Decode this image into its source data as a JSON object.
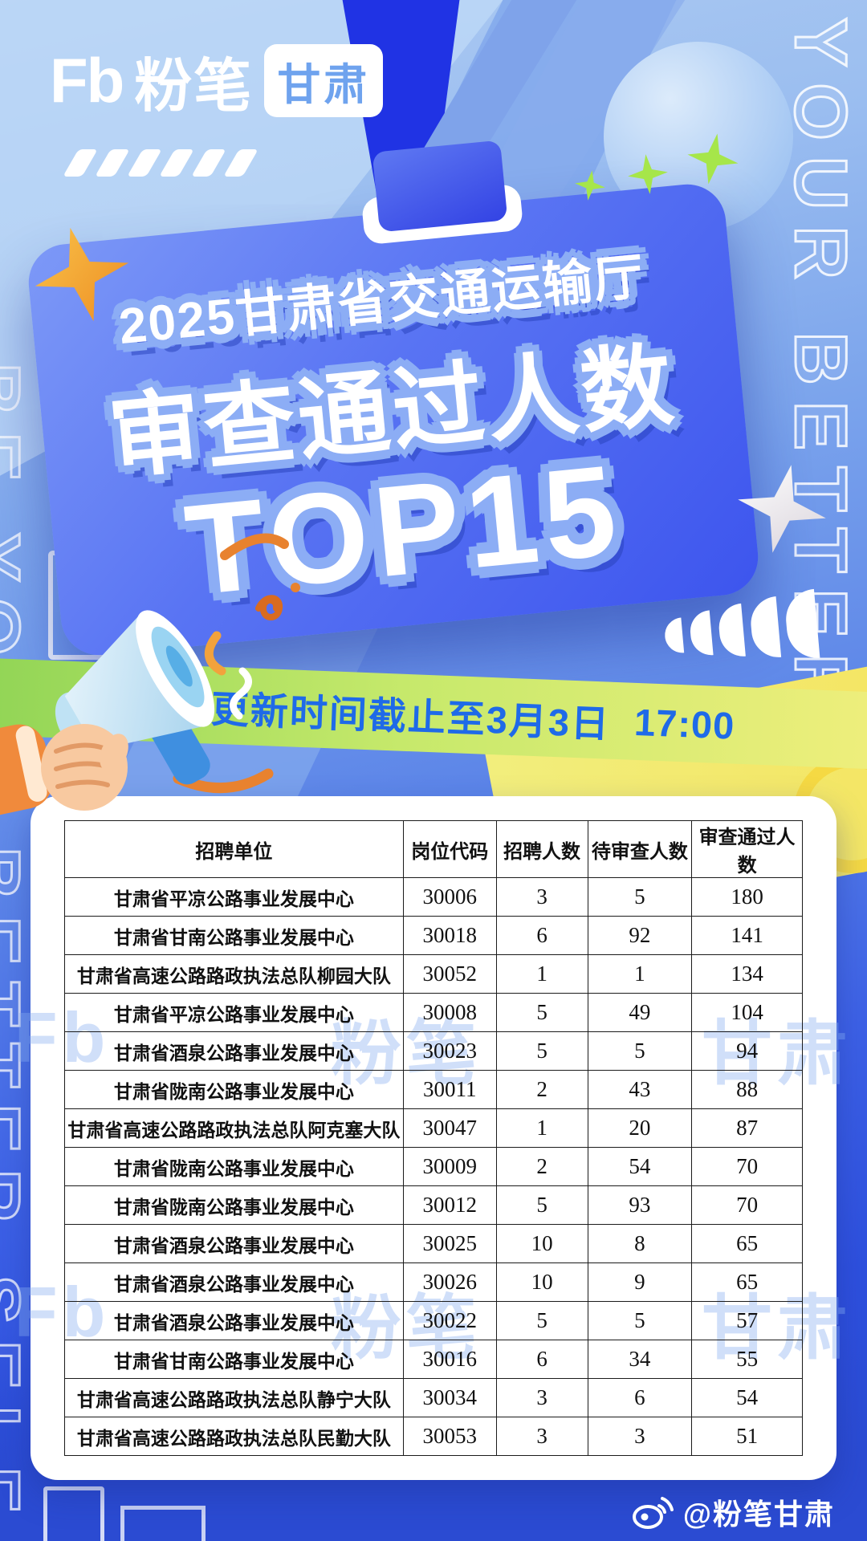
{
  "brand": {
    "logo_fb": "Fb",
    "logo_name": "粉笔",
    "region_badge": "甘肃",
    "slogan_vertical_right": "YOUR BETTER S",
    "slogan_vertical_left": "BE YOUR BETTER SELF",
    "watermark_parts": [
      "Fb",
      "粉笔",
      "甘肃"
    ]
  },
  "header": {
    "title_line1": "2025甘肃省交通运输厅",
    "title_line2": "审查通过人数",
    "title_line3": "TOP15"
  },
  "update_banner": {
    "text": "数据更新时间截止至3月3日",
    "time": "17:00"
  },
  "table": {
    "columns": [
      "招聘单位",
      "岗位代码",
      "招聘人数",
      "待审查人数",
      "审查通过人数"
    ],
    "rows": [
      [
        "甘肃省平凉公路事业发展中心",
        "30006",
        "3",
        "5",
        "180"
      ],
      [
        "甘肃省甘南公路事业发展中心",
        "30018",
        "6",
        "92",
        "141"
      ],
      [
        "甘肃省高速公路路政执法总队柳园大队",
        "30052",
        "1",
        "1",
        "134"
      ],
      [
        "甘肃省平凉公路事业发展中心",
        "30008",
        "5",
        "49",
        "104"
      ],
      [
        "甘肃省酒泉公路事业发展中心",
        "30023",
        "5",
        "5",
        "94"
      ],
      [
        "甘肃省陇南公路事业发展中心",
        "30011",
        "2",
        "43",
        "88"
      ],
      [
        "甘肃省高速公路路政执法总队阿克塞大队",
        "30047",
        "1",
        "20",
        "87"
      ],
      [
        "甘肃省陇南公路事业发展中心",
        "30009",
        "2",
        "54",
        "70"
      ],
      [
        "甘肃省陇南公路事业发展中心",
        "30012",
        "5",
        "93",
        "70"
      ],
      [
        "甘肃省酒泉公路事业发展中心",
        "30025",
        "10",
        "8",
        "65"
      ],
      [
        "甘肃省酒泉公路事业发展中心",
        "30026",
        "10",
        "9",
        "65"
      ],
      [
        "甘肃省酒泉公路事业发展中心",
        "30022",
        "5",
        "5",
        "57"
      ],
      [
        "甘肃省甘南公路事业发展中心",
        "30016",
        "6",
        "34",
        "55"
      ],
      [
        "甘肃省高速公路路政执法总队静宁大队",
        "30034",
        "3",
        "6",
        "54"
      ],
      [
        "甘肃省高速公路路政执法总队民勤大队",
        "30053",
        "3",
        "3",
        "51"
      ]
    ]
  },
  "footer": {
    "weibo_handle": "@粉笔甘肃",
    "weibo_icon": "weibo-icon"
  },
  "colors": {
    "card_blue": "#3D55EE",
    "title_outline": "#8CADF5",
    "banner_green": "#8FD455",
    "banner_yellow": "#F3EF7E",
    "banner_text_blue": "#1F6AE8",
    "background_top": "#AECBF2",
    "background_bottom": "#2B4BD4",
    "table_border": "#1B1B1B",
    "watermark_blue": "#85ACF0",
    "star_orange": "#ED8C21",
    "sparkle_green": "#A6E64A"
  }
}
